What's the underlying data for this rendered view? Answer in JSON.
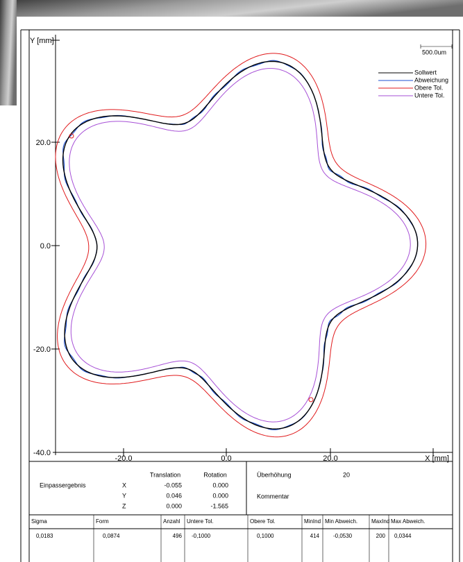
{
  "plot": {
    "y_axis_label": "Y [mm]",
    "x_axis_label": "X [mm]",
    "scale_bar": "500.0um",
    "y_ticks": [
      "20.0",
      "0.0",
      "-20.0",
      "-40.0"
    ],
    "x_ticks": [
      "-20.0",
      "0.0",
      "20.0"
    ],
    "legend": [
      "Sollwert",
      "Abweichung",
      "Obere Tol.",
      "Untere Tol."
    ]
  },
  "fit": {
    "title": "Einpassergebnis",
    "translation_header": "Translation",
    "rotation_header": "Rotation",
    "axes": [
      "X",
      "Y",
      "Z"
    ],
    "translation": [
      "-0.055",
      "0.046",
      "0.000"
    ],
    "rotation": [
      "0.000",
      "0.000",
      "-1.565"
    ],
    "exaggeration_label": "Überhöhung",
    "exaggeration": "20",
    "comment_label": "Kommentar"
  },
  "table": {
    "headers": [
      "Sigma",
      "Form",
      "Anzahl",
      "Untere Tol.",
      "Obere Tol.",
      "MinInd",
      "Min Abweich.",
      "MaxInd",
      "Max Abweich."
    ],
    "rows": [
      [
        "0,0183",
        "0,0874",
        "496",
        "-0,1000",
        "0,1000",
        "414",
        "-0,0530",
        "200",
        "0,0344"
      ]
    ]
  }
}
